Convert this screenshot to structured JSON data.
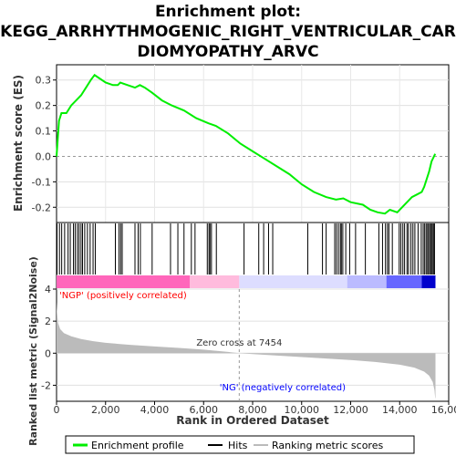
{
  "chart_data": {
    "type": "line",
    "title_lines": [
      "Enrichment plot:",
      "KEGG_ARRHYTHMOGENIC_RIGHT_VENTRICULAR_CAR",
      "DIOMYOPATHY_ARVC"
    ],
    "es_panel": {
      "ylabel": "Enrichment score (ES)",
      "ylim": [
        -0.26,
        0.36
      ],
      "yticks": [
        -0.2,
        -0.1,
        0.0,
        0.1,
        0.2,
        0.3
      ],
      "ytick_labels": [
        "-0.2",
        "-0.1",
        "0.0",
        "0.1",
        "0.2",
        "0.3"
      ],
      "series_color": "#00ee00",
      "x": [
        0,
        100,
        200,
        400,
        600,
        800,
        1000,
        1200,
        1400,
        1550,
        1700,
        2000,
        2300,
        2500,
        2600,
        2900,
        3200,
        3400,
        3600,
        3900,
        4300,
        4700,
        5200,
        5700,
        6200,
        6500,
        7000,
        7500,
        8000,
        8500,
        9000,
        9500,
        10000,
        10500,
        11000,
        11400,
        11700,
        12000,
        12500,
        12800,
        13100,
        13400,
        13600,
        13900,
        14100,
        14300,
        14500,
        14700,
        14900,
        15000,
        15100,
        15200,
        15300,
        15450
      ],
      "y": [
        0.0,
        0.14,
        0.17,
        0.17,
        0.2,
        0.22,
        0.24,
        0.27,
        0.3,
        0.32,
        0.31,
        0.29,
        0.28,
        0.28,
        0.29,
        0.28,
        0.27,
        0.28,
        0.27,
        0.25,
        0.22,
        0.2,
        0.18,
        0.15,
        0.13,
        0.12,
        0.09,
        0.05,
        0.02,
        -0.01,
        -0.04,
        -0.07,
        -0.11,
        -0.14,
        -0.16,
        -0.17,
        -0.165,
        -0.18,
        -0.19,
        -0.21,
        -0.22,
        -0.225,
        -0.21,
        -0.22,
        -0.2,
        -0.18,
        -0.16,
        -0.15,
        -0.14,
        -0.12,
        -0.09,
        -0.06,
        -0.02,
        0.01
      ]
    },
    "hits": [
      20,
      120,
      210,
      330,
      470,
      560,
      690,
      760,
      850,
      920,
      1000,
      1060,
      1150,
      1260,
      1370,
      1490,
      1580,
      2400,
      2550,
      2620,
      2680,
      3200,
      3330,
      3420,
      3900,
      4650,
      4950,
      5200,
      5500,
      5650,
      6150,
      6220,
      6260,
      6320,
      6520,
      7650,
      8250,
      8450,
      8650,
      8820,
      10250,
      10850,
      11000,
      11350,
      11420,
      11500,
      11580,
      11620,
      11680,
      11800,
      11960,
      12200,
      12600,
      13150,
      13300,
      13420,
      13500,
      13560,
      13700,
      13980,
      14050,
      14130,
      14200,
      14300,
      14360,
      14460,
      14540,
      14620,
      14750,
      14880,
      14960,
      15020,
      15080,
      15140,
      15180,
      15240,
      15290,
      15330,
      15380,
      15420
    ],
    "ranking_band_colors": [
      "#ff0000",
      "#ff66bb",
      "#ffbbdd",
      "#ddddff",
      "#bbbbff",
      "#6666ff",
      "#0000cc"
    ],
    "metric_panel": {
      "ylabel": "Ranked list metric (Signal2Noise)",
      "ylim": [
        -3,
        4
      ],
      "yticks": [
        -2,
        0,
        2,
        4
      ],
      "ytick_labels": [
        "-2",
        "0",
        "2",
        "4"
      ],
      "x": [
        0,
        20,
        60,
        150,
        300,
        600,
        1000,
        1500,
        2000,
        3000,
        4000,
        5000,
        6000,
        7000,
        7454,
        8000,
        9000,
        10000,
        11000,
        12000,
        13000,
        14000,
        14600,
        15000,
        15200,
        15350,
        15420,
        15450,
        15460
      ],
      "y": [
        3.2,
        2.6,
        1.9,
        1.5,
        1.25,
        1.05,
        0.88,
        0.75,
        0.65,
        0.52,
        0.42,
        0.33,
        0.22,
        0.08,
        0.0,
        -0.06,
        -0.15,
        -0.24,
        -0.33,
        -0.43,
        -0.55,
        -0.72,
        -0.9,
        -1.15,
        -1.4,
        -1.8,
        -2.3,
        -2.8,
        -2.8
      ],
      "pos_label": "'NGP' (positively correlated)",
      "neg_label": "'NG' (negatively correlated)",
      "zero_cross_label": "Zero cross at 7454",
      "zero_cross_x": 7454
    },
    "xlabel": "Rank in Ordered Dataset",
    "xlim": [
      0,
      16000
    ],
    "xticks": [
      0,
      2000,
      4000,
      6000,
      8000,
      10000,
      12000,
      14000,
      16000
    ],
    "xtick_labels": [
      "0",
      "2,000",
      "4,000",
      "6,000",
      "8,000",
      "10,000",
      "12,000",
      "14,000",
      "16,000"
    ],
    "legend": [
      {
        "label": "Enrichment profile",
        "color": "#00ee00"
      },
      {
        "label": "Hits",
        "color": "#000000"
      },
      {
        "label": "Ranking metric scores",
        "color": "#bbbbbb"
      }
    ]
  }
}
